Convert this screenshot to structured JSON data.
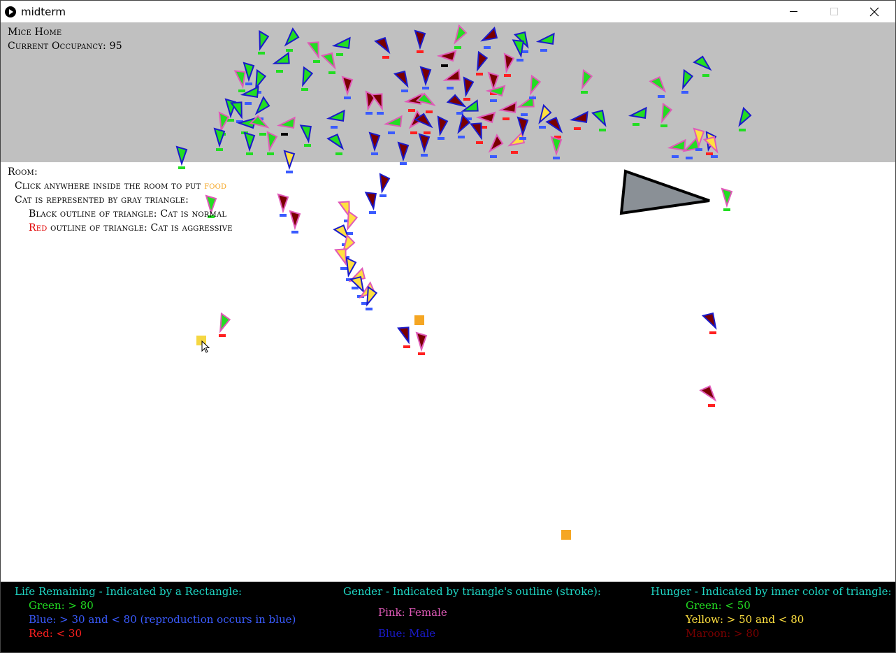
{
  "window": {
    "title": "midterm"
  },
  "home": {
    "title": "Mice Home",
    "occupancy_label": "Current Occupancy:",
    "occupancy_value": 95
  },
  "room": {
    "title": "Room:",
    "line1_text": "Click anywhere inside the room to put",
    "line1_food": "food",
    "line2": "Cat is represented by gray triangle:",
    "line3": "Black outline of triangle: Cat is normal",
    "line4_red": "Red",
    "line4_rest": "outline of triangle: Cat is aggressive"
  },
  "legend": {
    "life": {
      "title": "Life Remaining - Indicated by a Rectangle:",
      "green": "Green: > 80",
      "blue": "Blue: > 30 and < 80 (reproduction occurs in blue)",
      "red": "Red: < 30"
    },
    "gender": {
      "title": "Gender - Indicated by triangle's outline (stroke):",
      "pink": "Pink: Female",
      "blue": "Blue: Male"
    },
    "hunger": {
      "title": "Hunger - Indicated by inner color of triangle:",
      "green": "Green: < 50",
      "yellow": "Yellow: > 50 and < 80",
      "maroon": "Maroon: > 80"
    }
  },
  "colors": {
    "legend_title": "#1fd6c4",
    "green": "#22dd22",
    "blue": "#3a5bff",
    "red": "#ff2020",
    "pink": "#e05ab8",
    "male_blue": "#1a1acc",
    "yellow": "#ffe040",
    "maroon": "#7a0000",
    "food": "#f5a623",
    "home_bg": "#c0c0c0"
  },
  "icons": {
    "app": "play-circle-icon",
    "minimize": "minimize-icon",
    "maximize": "maximize-icon",
    "close": "close-icon"
  }
}
